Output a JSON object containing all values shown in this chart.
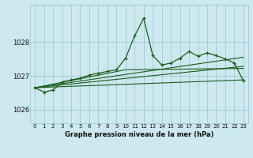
{
  "title": "Graphe pression niveau de la mer (hPa)",
  "bg_color": "#cde8ef",
  "grid_color": "#9dccd6",
  "line_color": "#1a5c1a",
  "xlim": [
    -0.5,
    23.5
  ],
  "ylim": [
    1025.6,
    1029.1
  ],
  "yticks": [
    1026,
    1027,
    1028
  ],
  "xticks": [
    0,
    1,
    2,
    3,
    4,
    5,
    6,
    7,
    8,
    9,
    10,
    11,
    12,
    13,
    14,
    15,
    16,
    17,
    18,
    19,
    20,
    21,
    22,
    23
  ],
  "main_line": [
    [
      0,
      1026.65
    ],
    [
      1,
      1026.52
    ],
    [
      2,
      1026.58
    ],
    [
      3,
      1026.82
    ],
    [
      4,
      1026.88
    ],
    [
      5,
      1026.93
    ],
    [
      6,
      1027.02
    ],
    [
      7,
      1027.08
    ],
    [
      8,
      1027.13
    ],
    [
      9,
      1027.18
    ],
    [
      10,
      1027.52
    ],
    [
      11,
      1028.18
    ],
    [
      12,
      1028.7
    ],
    [
      13,
      1027.6
    ],
    [
      14,
      1027.32
    ],
    [
      15,
      1027.38
    ],
    [
      16,
      1027.52
    ],
    [
      17,
      1027.72
    ],
    [
      18,
      1027.58
    ],
    [
      19,
      1027.68
    ],
    [
      20,
      1027.6
    ],
    [
      21,
      1027.5
    ],
    [
      22,
      1027.38
    ],
    [
      23,
      1026.85
    ]
  ],
  "trend_line1": [
    [
      0,
      1026.65
    ],
    [
      23,
      1026.88
    ]
  ],
  "trend_line2": [
    [
      0,
      1026.65
    ],
    [
      23,
      1027.28
    ]
  ],
  "trend_line3": [
    [
      0,
      1026.65
    ],
    [
      23,
      1027.55
    ]
  ],
  "trend_line4": [
    [
      0,
      1026.65
    ],
    [
      10,
      1027.18
    ],
    [
      23,
      1027.22
    ]
  ]
}
